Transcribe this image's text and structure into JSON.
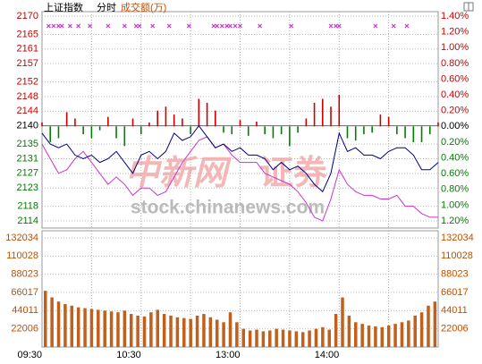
{
  "chart_data": [
    {
      "type": "line",
      "title": "上证指数",
      "subtitle": "分时",
      "x": [
        0,
        5,
        10,
        15,
        20,
        25,
        30,
        35,
        40,
        45,
        50,
        55,
        60,
        65,
        70,
        75,
        80,
        85,
        90,
        95,
        100,
        105,
        110,
        115,
        120,
        125,
        130,
        135,
        140,
        145,
        150,
        155,
        160,
        165,
        170,
        175,
        180,
        185,
        190,
        195,
        200,
        205,
        210,
        215,
        220,
        225,
        230,
        235,
        240
      ],
      "xlim": [
        0,
        240
      ],
      "xgrid": [
        30,
        60,
        90,
        120,
        150,
        180,
        210
      ],
      "ylim": [
        2114,
        2170
      ],
      "yticks": [
        2170,
        2165,
        2161,
        2157,
        2152,
        2148,
        2144,
        2140,
        2135,
        2131,
        2127,
        2123,
        2118,
        2114
      ],
      "y2lim": [
        -1.2,
        1.4
      ],
      "y2ticks": [
        {
          "value": 1.4,
          "label": "1.40%"
        },
        {
          "value": 1.2,
          "label": "1.20%"
        },
        {
          "value": 1.0,
          "label": "1.00%"
        },
        {
          "value": 0.8,
          "label": "0.80%"
        },
        {
          "value": 0.6,
          "label": "0.60%"
        },
        {
          "value": 0.4,
          "label": "0.40%"
        },
        {
          "value": 0.2,
          "label": "0.20%"
        },
        {
          "value": 0,
          "label": "0.00%"
        },
        {
          "value": -0.2,
          "label": "0.20%"
        },
        {
          "value": -0.4,
          "label": "0.40%"
        },
        {
          "value": -0.6,
          "label": "0.60%"
        },
        {
          "value": -0.8,
          "label": "0.80%"
        },
        {
          "value": -1.0,
          "label": "1.00%"
        },
        {
          "value": -1.2,
          "label": "1.20%"
        }
      ],
      "up_color": "#cc0000",
      "down_color": "#008000",
      "flat_color": "#000000",
      "grid": true,
      "series": [
        {
          "type": "line",
          "color": "#000080",
          "values": [
            2138,
            2135,
            2134,
            2135,
            2132,
            2131,
            2132,
            2130,
            2131,
            2133,
            2130,
            2127,
            2132,
            2133,
            2131,
            2133,
            2138,
            2136,
            2137,
            2140,
            2137,
            2134,
            2135,
            2133,
            2134,
            2132,
            2132,
            2131,
            2128,
            2130,
            2128,
            2129,
            2127,
            2124,
            2122,
            2127,
            2138,
            2133,
            2134,
            2132,
            2132,
            2131,
            2133,
            2134,
            2134,
            2132,
            2128,
            2128,
            2130
          ]
        },
        {
          "type": "line",
          "color": "#cc33cc",
          "values": [
            2135,
            2131,
            2127,
            2128,
            2131,
            2133,
            2130,
            2127,
            2124,
            2126,
            2124,
            2121,
            2123,
            2123,
            2121,
            2122,
            2126,
            2130,
            2133,
            2136,
            2137,
            2134,
            2135,
            2132,
            2130,
            2130,
            2130,
            2127,
            2126,
            2125,
            2124,
            2122,
            2119,
            2115,
            2114,
            2120,
            2128,
            2124,
            2122,
            2121,
            2121,
            2120,
            2120,
            2121,
            2118,
            2118,
            2116,
            2115,
            2115
          ]
        },
        {
          "type": "bar",
          "axis": "y2",
          "values": [
            0.05,
            -0.2,
            -0.15,
            0.18,
            0.1,
            -0.1,
            -0.15,
            -0.05,
            0.12,
            -0.15,
            -0.25,
            0.1,
            -0.1,
            0.05,
            0.2,
            0.25,
            0.15,
            0.1,
            -0.1,
            0.35,
            0.3,
            0.2,
            -0.08,
            -0.1,
            0.08,
            -0.12,
            0.06,
            -0.1,
            -0.15,
            -0.1,
            -0.25,
            -0.08,
            0.1,
            0.3,
            0.35,
            0.25,
            0.4,
            -0.15,
            -0.18,
            -0.1,
            -0.08,
            0.15,
            0.12,
            -0.1,
            -0.15,
            -0.2,
            -0.2,
            -0.1,
            0.05
          ]
        }
      ],
      "signals": {
        "color": "#cc33cc",
        "x": [
          4,
          7,
          10,
          12,
          17,
          22,
          29,
          40,
          50,
          57,
          59,
          67,
          77,
          89,
          104,
          106,
          109,
          112,
          114,
          117,
          120,
          132,
          151,
          175,
          178,
          180,
          202,
          213,
          221
        ]
      },
      "watermark": {
        "brand": "中新网",
        "section": "证券",
        "url": "stock.chinanews.com"
      }
    },
    {
      "type": "bar",
      "title": "成交额(万)",
      "color": "#c0601c",
      "tick_color": "#c05000",
      "x": [
        0,
        4,
        8,
        12,
        16,
        20,
        24,
        28,
        32,
        36,
        40,
        44,
        48,
        52,
        56,
        60,
        64,
        68,
        72,
        76,
        80,
        84,
        88,
        92,
        96,
        100,
        104,
        108,
        112,
        116,
        120,
        124,
        128,
        132,
        136,
        140,
        144,
        148,
        152,
        156,
        160,
        164,
        168,
        172,
        176,
        180,
        184,
        188,
        192,
        196,
        200,
        204,
        208,
        212,
        216,
        220,
        224,
        228,
        232,
        236
      ],
      "values": [
        68000,
        60000,
        55000,
        52000,
        50000,
        48000,
        47000,
        46000,
        45000,
        44000,
        43000,
        42000,
        44000,
        40000,
        38000,
        37000,
        42000,
        45000,
        40000,
        38000,
        36000,
        35000,
        34000,
        38000,
        40000,
        36000,
        33000,
        30000,
        42000,
        30000,
        22000,
        20000,
        21000,
        19000,
        20000,
        22000,
        21000,
        20000,
        19000,
        18000,
        20000,
        22000,
        24000,
        21000,
        40000,
        60000,
        38000,
        30000,
        28000,
        26000,
        25000,
        24000,
        26000,
        28000,
        30000,
        32000,
        38000,
        42000,
        50000,
        55000
      ],
      "xlim": [
        0,
        240
      ],
      "xticks": [
        {
          "value": 0,
          "label": "09:30"
        },
        {
          "value": 60,
          "label": "10:30"
        },
        {
          "value": 120,
          "label": "13:00"
        },
        {
          "value": 180,
          "label": "14:00"
        }
      ],
      "ylim": [
        0,
        139600
      ],
      "yticks": [
        132034,
        110028,
        88023,
        66017,
        44011,
        22006
      ],
      "grid": true
    }
  ]
}
